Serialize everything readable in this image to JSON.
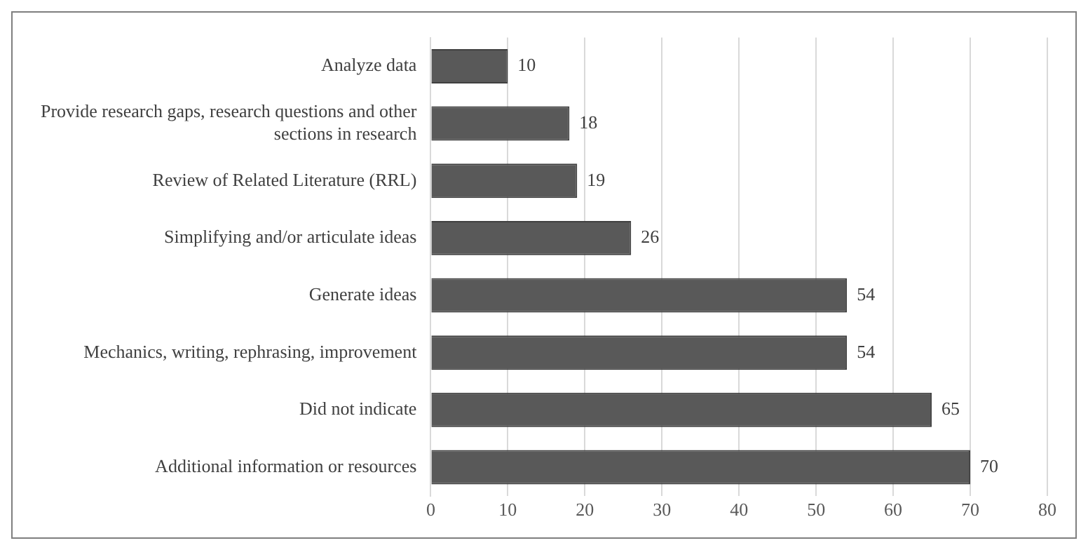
{
  "chart_data": {
    "type": "bar",
    "orientation": "horizontal",
    "categories": [
      "Analyze data",
      "Provide research gaps, research questions and other sections in research",
      "Review of Related Literature (RRL)",
      "Simplifying and/or articulate ideas",
      "Generate ideas",
      "Mechanics, writing, rephrasing, improvement",
      "Did not indicate",
      "Additional information or resources"
    ],
    "values": [
      10,
      18,
      19,
      26,
      54,
      54,
      65,
      70
    ],
    "color": "#595959",
    "xlim": [
      0,
      80
    ],
    "xticks": [
      0,
      10,
      20,
      30,
      40,
      50,
      60,
      70,
      80
    ],
    "grid": "x",
    "data_labels": true,
    "legend": false
  }
}
